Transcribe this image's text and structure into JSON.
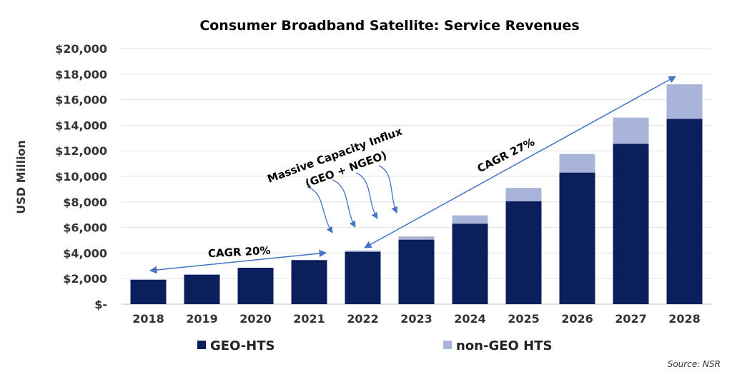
{
  "chart_data": {
    "type": "bar",
    "stacked": true,
    "title": "Consumer Broadband Satellite: Service Revenues",
    "ylabel": "USD Million",
    "xlabel": "",
    "ylim": [
      0,
      20000
    ],
    "yticks": [
      "$-",
      "$2,000",
      "$4,000",
      "$6,000",
      "$8,000",
      "$10,000",
      "$12,000",
      "$14,000",
      "$16,000",
      "$18,000",
      "$20,000"
    ],
    "grid": true,
    "legend_position": "bottom",
    "categories": [
      "2018",
      "2019",
      "2020",
      "2021",
      "2022",
      "2023",
      "2024",
      "2025",
      "2026",
      "2027",
      "2028"
    ],
    "series": [
      {
        "name": "GEO-HTS",
        "color": "#0b1f5c",
        "values": [
          1900,
          2300,
          2850,
          3450,
          4100,
          5050,
          6300,
          8050,
          10300,
          12550,
          14500
        ]
      },
      {
        "name": "non-GEO HTS",
        "color": "#a9b4da",
        "values": [
          50,
          50,
          0,
          0,
          100,
          250,
          650,
          1050,
          1450,
          2050,
          2700
        ]
      }
    ],
    "annotations": {
      "influx_line1": "Massive Capacity Influx",
      "influx_line2": "(GEO + NGEO)",
      "cagr_early": "CAGR 20%",
      "cagr_late": "CAGR 27%"
    },
    "source": "Source: NSR",
    "arrow_color": "#4472c4"
  }
}
